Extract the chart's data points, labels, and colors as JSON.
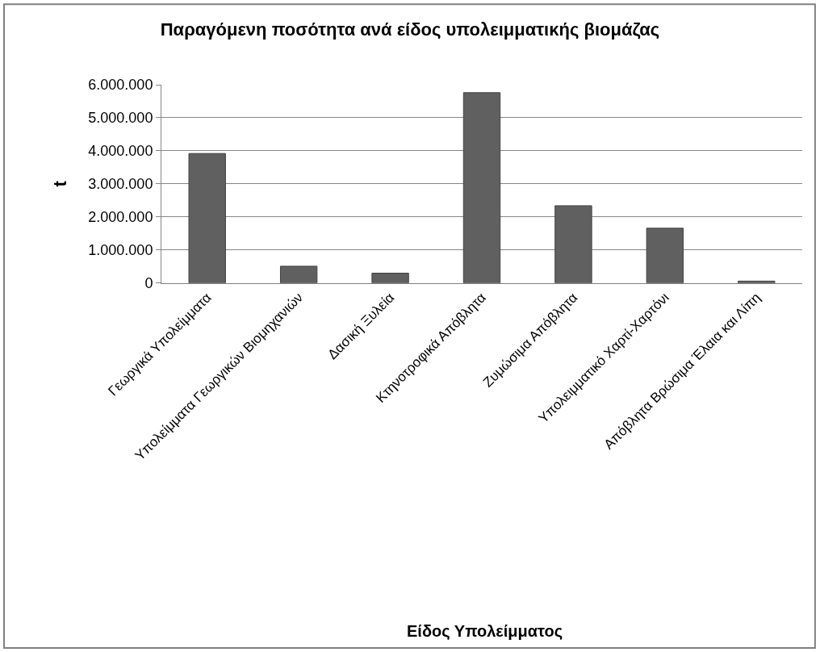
{
  "chart_data": {
    "type": "bar",
    "title": "Παραγόμενη ποσότητα ανά είδος υπολειμματικής βιομάζας",
    "annotations": [
      "Είδος Υπολείμματος"
    ],
    "ylabel": "t",
    "categories": [
      "Γεωργικά Υπολείμματα",
      "Υπολείμματα Γεωργικών Βιομηχανιών",
      "Δασική Ξυλεία",
      "Κτηνοτροφικά Απόβλητα",
      "Ζυμώσιμα Απόβλητα",
      "Υπολειμματικό Χαρτί-Χαρτόνι",
      "Απόβλητα Βρώσιμα Έλαια και Λίπη"
    ],
    "values": [
      3920000,
      510000,
      300000,
      5760000,
      2340000,
      1660000,
      60000
    ],
    "color": "#606060",
    "ylim": [
      0,
      6000000
    ],
    "yticks": [
      {
        "value": 0,
        "label": "0"
      },
      {
        "value": 1000000,
        "label": "1.000.000"
      },
      {
        "value": 2000000,
        "label": "2.000.000"
      },
      {
        "value": 3000000,
        "label": "3.000.000"
      },
      {
        "value": 4000000,
        "label": "4.000.000"
      },
      {
        "value": 5000000,
        "label": "5.000.000"
      },
      {
        "value": 6000000,
        "label": "6.000.000"
      }
    ],
    "grid": "y"
  }
}
